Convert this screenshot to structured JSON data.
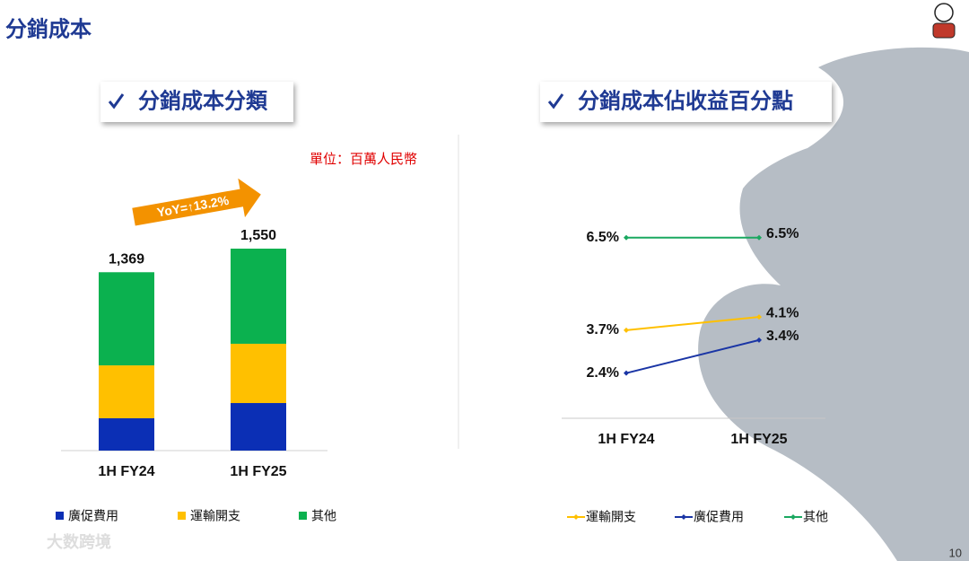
{
  "header": {
    "title": "分銷成本"
  },
  "page_number": "10",
  "watermark": "大数跨境",
  "chart_data": [
    {
      "type": "stacked_bar",
      "title": "分銷成本分類",
      "subtitle": "單位：百萬人民幣",
      "annotation": "YoY=↑13.2%",
      "categories": [
        "1H FY24",
        "1H FY25"
      ],
      "series": [
        {
          "name": "廣促費用",
          "color": "#0b2fb5",
          "values": [
            248,
            365
          ]
        },
        {
          "name": "運輸開支",
          "color": "#ffc000",
          "values": [
            406,
            455
          ]
        },
        {
          "name": "其他",
          "color": "#0bb14f",
          "values": [
            715,
            730
          ]
        }
      ],
      "totals": [
        1369,
        1550
      ],
      "total_labels": [
        "1,369",
        "1,550"
      ]
    },
    {
      "type": "line",
      "title": "分銷成本佔收益百分點",
      "categories": [
        "1H FY24",
        "1H FY25"
      ],
      "series": [
        {
          "name": "運輸開支",
          "color": "#ffc000",
          "values": [
            3.7,
            4.1
          ],
          "value_labels": [
            "3.7%",
            "4.1%"
          ]
        },
        {
          "name": "廣促費用",
          "color": "#1a35a5",
          "values": [
            2.4,
            3.4
          ],
          "value_labels": [
            "2.4%",
            "3.4%"
          ]
        },
        {
          "name": "其他",
          "color": "#1aa860",
          "values": [
            6.5,
            6.5
          ],
          "value_labels": [
            "6.5%",
            "6.5%"
          ]
        }
      ]
    }
  ]
}
